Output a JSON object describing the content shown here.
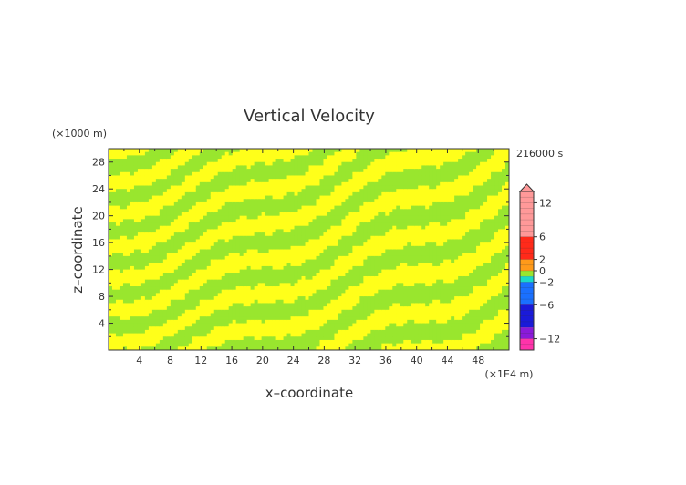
{
  "chart_data": {
    "type": "heatmap",
    "title": "Vertical Velocity",
    "xlabel": "x–coordinate",
    "ylabel": "z–coordinate",
    "x_unit": "(×1E4 m)",
    "y_unit": "(×1000 m)",
    "time_label": "216000 s",
    "xlim": [
      0,
      52
    ],
    "ylim": [
      0,
      30
    ],
    "x_ticks": [
      4,
      8,
      12,
      16,
      20,
      24,
      28,
      32,
      36,
      40,
      44,
      48
    ],
    "y_ticks": [
      4,
      8,
      12,
      16,
      20,
      24,
      28
    ],
    "x_tick_labels": [
      "4",
      "8",
      "12",
      "16",
      "20",
      "24",
      "28",
      "32",
      "36",
      "40",
      "44",
      "48"
    ],
    "y_tick_labels": [
      "4",
      "8",
      "12",
      "16",
      "20",
      "24",
      "28"
    ],
    "field_values_present": [
      {
        "range": [
          -1,
          0
        ],
        "color": "#99e62e"
      },
      {
        "range": [
          0,
          1
        ],
        "color": "#ffff1a"
      }
    ],
    "colorbar": {
      "min": -14,
      "max": 14,
      "extend": "max",
      "tick_values": [
        12,
        6,
        2,
        0,
        -2,
        -6,
        -12
      ],
      "tick_labels": [
        "12",
        "6",
        "2",
        "0",
        "−2",
        "−6",
        "−12"
      ],
      "colors": [
        {
          "from": 6,
          "to": 14,
          "color": "#ff9999"
        },
        {
          "from": 2,
          "to": 6,
          "color": "#ff2a1a"
        },
        {
          "from": 0,
          "to": 2,
          "color": "#ff9a1a"
        },
        {
          "from": -1,
          "to": 0,
          "color": "#99e62e"
        },
        {
          "from": -2,
          "to": -1,
          "color": "#1ad9c8"
        },
        {
          "from": -6,
          "to": -2,
          "color": "#1a70ff"
        },
        {
          "from": -10,
          "to": -6,
          "color": "#1a1ad9"
        },
        {
          "from": -12,
          "to": -10,
          "color": "#8a1ad9"
        },
        {
          "from": -14,
          "to": -12,
          "color": "#ff33aa"
        }
      ]
    },
    "colors": {
      "positive_field": "#ffff1a",
      "negative_field": "#99e62e",
      "axis": "#333333"
    }
  }
}
